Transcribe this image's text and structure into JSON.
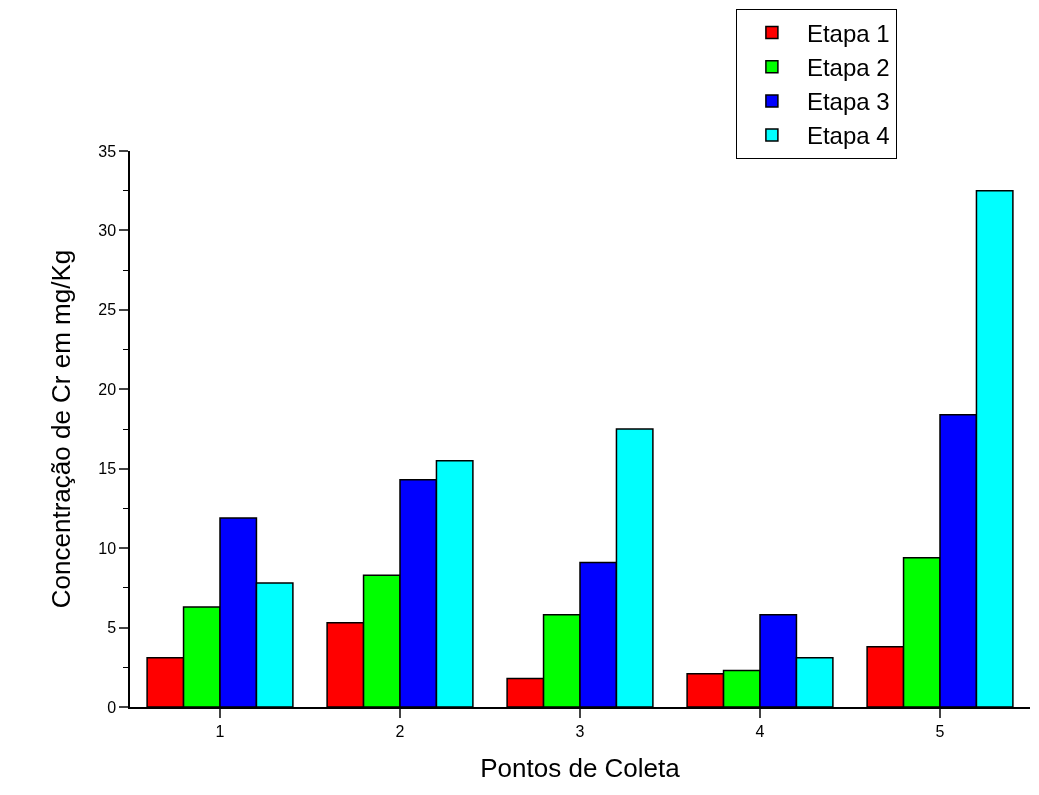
{
  "chart_data": {
    "type": "bar",
    "xlabel": "Pontos de Coleta",
    "ylabel": "Concentração de Cr em mg/Kg",
    "categories": [
      "1",
      "2",
      "3",
      "4",
      "5"
    ],
    "series": [
      {
        "name": "Etapa 1",
        "color": "#ff0000",
        "values": [
          3.1,
          5.3,
          1.8,
          2.1,
          3.8
        ]
      },
      {
        "name": "Etapa 2",
        "color": "#00ff00",
        "values": [
          6.3,
          8.3,
          5.8,
          2.3,
          9.4
        ]
      },
      {
        "name": "Etapa 3",
        "color": "#0000ff",
        "values": [
          11.9,
          14.3,
          9.1,
          5.8,
          18.4
        ]
      },
      {
        "name": "Etapa 4",
        "color": "#00ffff",
        "values": [
          7.8,
          15.5,
          17.5,
          3.1,
          32.5
        ]
      }
    ],
    "ylim": [
      0,
      35
    ],
    "yticks": [
      0,
      5,
      10,
      15,
      20,
      25,
      30,
      35
    ],
    "grid": false,
    "legend": "top right"
  }
}
